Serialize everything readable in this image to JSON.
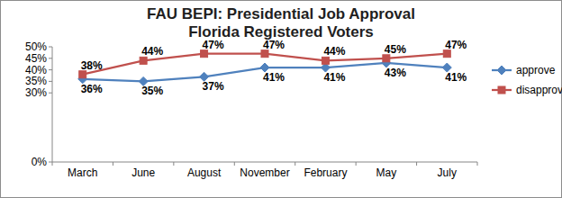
{
  "chart_data": {
    "type": "line",
    "title": "FAU BEPI: Presidential Job Approval",
    "subtitle": "Florida Registered Voters",
    "categories": [
      "March",
      "June",
      "August",
      "November",
      "February",
      "May",
      "July"
    ],
    "series": [
      {
        "name": "approve",
        "color": "#4f81bd",
        "marker": "diamond",
        "values": [
          36,
          35,
          37,
          41,
          41,
          43,
          41
        ],
        "value_labels": [
          "36%",
          "35%",
          "37%",
          "41%",
          "41%",
          "43%",
          "41%"
        ]
      },
      {
        "name": "disapprove",
        "color": "#c0504d",
        "marker": "square",
        "values": [
          38,
          44,
          47,
          47,
          44,
          45,
          47
        ],
        "value_labels": [
          "38%",
          "44%",
          "47%",
          "47%",
          "44%",
          "45%",
          "47%"
        ]
      }
    ],
    "ylim": [
      0,
      50
    ],
    "yticks": [
      {
        "value": 0,
        "label": "0%"
      },
      {
        "value": 30,
        "label": "30%"
      },
      {
        "value": 35,
        "label": "35%"
      },
      {
        "value": 40,
        "label": "40%"
      },
      {
        "value": 45,
        "label": "45%"
      },
      {
        "value": 50,
        "label": "50%"
      }
    ],
    "grid": false,
    "legend": "right",
    "data_labels": true
  }
}
